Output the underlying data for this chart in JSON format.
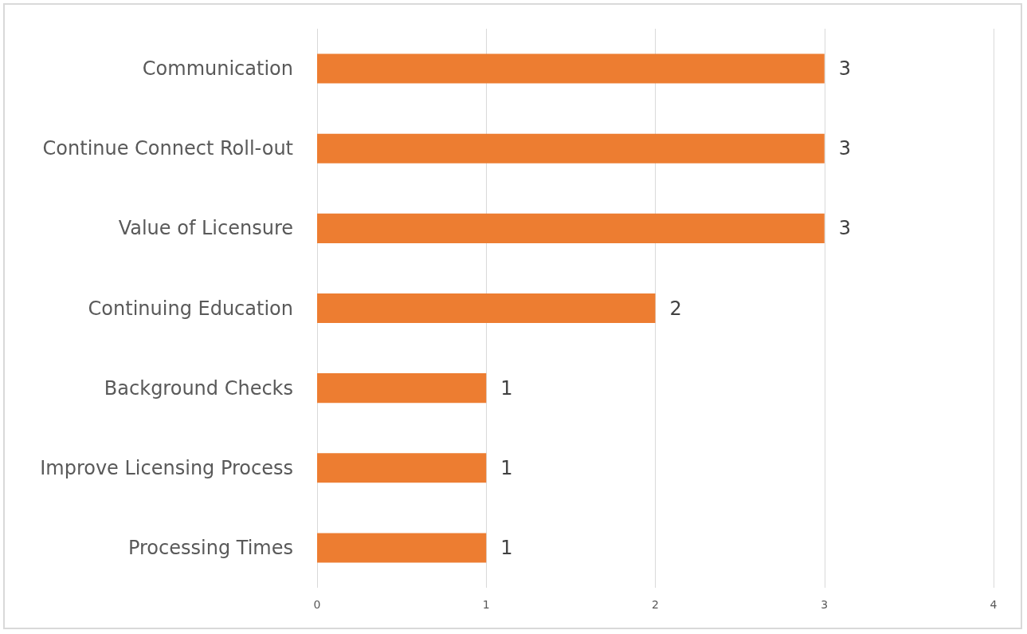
{
  "chart_data": {
    "type": "bar",
    "orientation": "horizontal",
    "categories": [
      "Communication",
      "Continue Connect Roll-out",
      "Value of Licensure",
      "Continuing Education",
      "Background Checks",
      "Improve Licensing Process",
      "Processing Times"
    ],
    "values": [
      3,
      3,
      3,
      2,
      1,
      1,
      1
    ],
    "color": "#ed7d31",
    "xlim": [
      0,
      4
    ],
    "xticks": [
      0,
      1,
      2,
      3,
      4
    ],
    "grid": "x",
    "data_labels": true
  }
}
